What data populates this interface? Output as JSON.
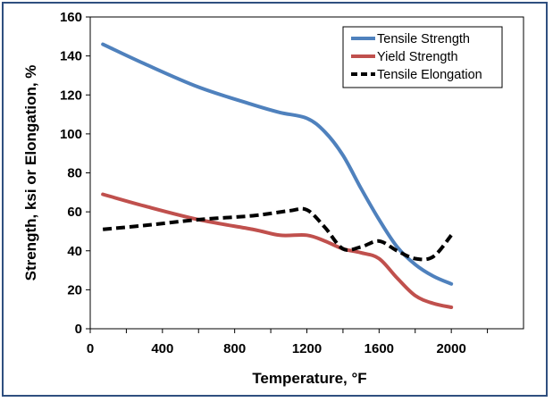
{
  "chart_data": {
    "type": "line",
    "title": "",
    "xlabel": "Temperature, °F",
    "ylabel": "Strength, ksi or Elongation, %",
    "xlim": [
      0,
      2400
    ],
    "ylim": [
      0,
      160
    ],
    "xticks": [
      0,
      400,
      800,
      1200,
      1600,
      2000
    ],
    "xtick_labels": [
      "0",
      "400",
      "800",
      "1200",
      "1600",
      "2000"
    ],
    "xminor_ticks": [
      200,
      600,
      1000,
      1400,
      1800,
      2200
    ],
    "yticks": [
      0,
      20,
      40,
      60,
      80,
      100,
      120,
      140,
      160
    ],
    "ytick_labels": [
      "0",
      "20",
      "40",
      "60",
      "80",
      "100",
      "120",
      "140",
      "160"
    ],
    "grid": false,
    "legend_position": "top-right",
    "series": [
      {
        "name": "Tensile Strength",
        "color": "#4f81bd",
        "dash": "solid",
        "x": [
          70,
          300,
          600,
          900,
          1050,
          1200,
          1300,
          1400,
          1500,
          1600,
          1700,
          1800,
          1900,
          2000
        ],
        "y": [
          146,
          136,
          124,
          115,
          111,
          108,
          101,
          89,
          72,
          56,
          42,
          33,
          27,
          23
        ]
      },
      {
        "name": "Yield Strength",
        "color": "#c0504d",
        "dash": "solid",
        "x": [
          70,
          300,
          600,
          900,
          1050,
          1200,
          1300,
          1400,
          1500,
          1600,
          1700,
          1800,
          1900,
          2000
        ],
        "y": [
          69,
          63,
          56,
          51,
          48,
          48,
          45,
          41,
          39,
          36,
          26,
          17,
          13,
          11
        ]
      },
      {
        "name": "Tensile Elongation",
        "color": "#000000",
        "dash": "dashed",
        "x": [
          70,
          300,
          600,
          900,
          1100,
          1200,
          1300,
          1400,
          1500,
          1600,
          1700,
          1800,
          1900,
          2000
        ],
        "y": [
          51,
          53,
          56,
          58,
          60.5,
          61,
          52,
          41,
          42,
          45,
          40,
          36,
          37,
          48
        ]
      }
    ]
  }
}
